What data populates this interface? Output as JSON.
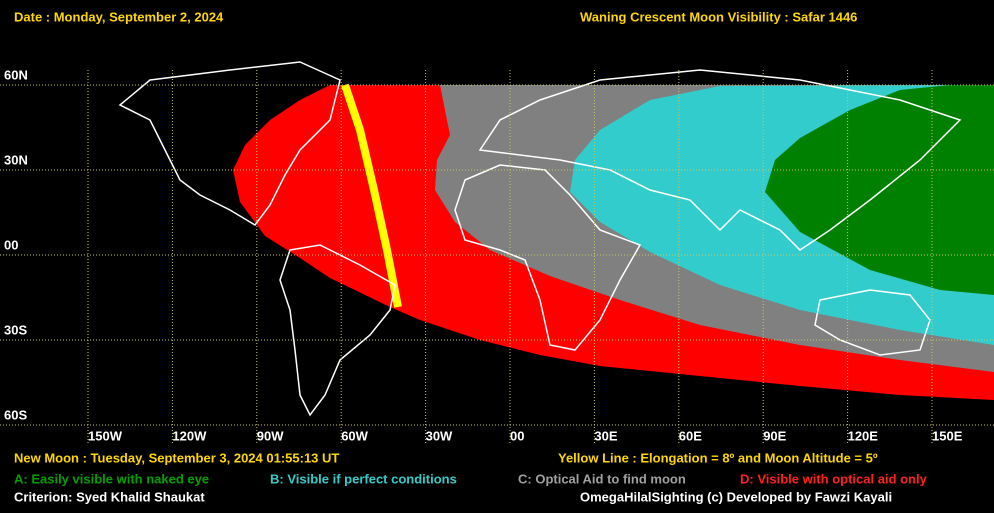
{
  "header": {
    "date": "Date : Monday, September 2, 2024",
    "title": "Waning Crescent Moon Visibility : Safar 1446"
  },
  "map": {
    "lat_labels": [
      "60N",
      "30N",
      "00",
      "30S",
      "60S"
    ],
    "lon_labels": [
      "150W",
      "120W",
      "90W",
      "60W",
      "30W",
      "00",
      "30E",
      "60E",
      "90E",
      "120E",
      "150E"
    ]
  },
  "footer": {
    "new_moon": "New Moon : Tuesday, September 3, 2024  01:55:13  UT",
    "yellow_line": "Yellow Line : Elongation = 8º  and Moon Altitude = 5º",
    "legend": [
      {
        "text": "A: Easily visible with naked eye",
        "color": "#00a000"
      },
      {
        "text": "B: Visible if perfect conditions",
        "color": "#33cccc"
      },
      {
        "text": "C: Optical Aid to find moon",
        "color": "#a0a0a0"
      },
      {
        "text": "D: Visible with optical aid only",
        "color": "#ff2020"
      }
    ],
    "criterion": "Criterion: Syed Khalid Shaukat",
    "credit": "OmegaHilalSighting  (c)  Developed by Fawzi Kayali"
  }
}
